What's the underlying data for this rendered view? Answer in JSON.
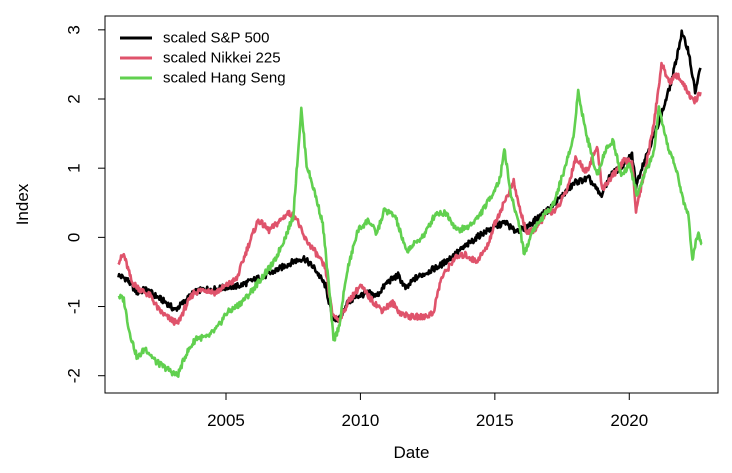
{
  "chart_data": {
    "type": "line",
    "title": "",
    "xlabel": "Date",
    "ylabel": "Index",
    "xlim": [
      2000.5,
      2023.3
    ],
    "ylim": [
      -2.25,
      3.2
    ],
    "xticks": [
      2005,
      2010,
      2015,
      2020
    ],
    "yticks": [
      -2,
      -1,
      0,
      1,
      2,
      3
    ],
    "grid": false,
    "legend_position": "top-left",
    "series": [
      {
        "name": "scaled S&P 500",
        "color": "#000000",
        "points": [
          [
            2001.0,
            -0.55
          ],
          [
            2001.3,
            -0.6
          ],
          [
            2001.7,
            -0.8
          ],
          [
            2002.0,
            -0.75
          ],
          [
            2002.4,
            -0.85
          ],
          [
            2002.8,
            -0.95
          ],
          [
            2003.1,
            -1.05
          ],
          [
            2003.4,
            -0.95
          ],
          [
            2003.8,
            -0.8
          ],
          [
            2004.2,
            -0.75
          ],
          [
            2004.6,
            -0.75
          ],
          [
            2005.0,
            -0.72
          ],
          [
            2005.5,
            -0.7
          ],
          [
            2006.0,
            -0.62
          ],
          [
            2006.5,
            -0.55
          ],
          [
            2007.0,
            -0.45
          ],
          [
            2007.5,
            -0.35
          ],
          [
            2007.9,
            -0.3
          ],
          [
            2008.3,
            -0.45
          ],
          [
            2008.7,
            -0.7
          ],
          [
            2008.95,
            -1.15
          ],
          [
            2009.2,
            -1.2
          ],
          [
            2009.5,
            -0.95
          ],
          [
            2009.9,
            -0.85
          ],
          [
            2010.3,
            -0.8
          ],
          [
            2010.6,
            -0.85
          ],
          [
            2011.0,
            -0.65
          ],
          [
            2011.4,
            -0.55
          ],
          [
            2011.7,
            -0.75
          ],
          [
            2012.0,
            -0.6
          ],
          [
            2012.5,
            -0.5
          ],
          [
            2013.0,
            -0.4
          ],
          [
            2013.5,
            -0.25
          ],
          [
            2014.0,
            -0.1
          ],
          [
            2014.5,
            0.05
          ],
          [
            2015.0,
            0.15
          ],
          [
            2015.4,
            0.22
          ],
          [
            2015.7,
            0.1
          ],
          [
            2016.1,
            0.12
          ],
          [
            2016.5,
            0.25
          ],
          [
            2017.0,
            0.4
          ],
          [
            2017.5,
            0.6
          ],
          [
            2018.0,
            0.8
          ],
          [
            2018.5,
            0.85
          ],
          [
            2018.95,
            0.6
          ],
          [
            2019.3,
            0.9
          ],
          [
            2019.8,
            1.05
          ],
          [
            2020.1,
            1.2
          ],
          [
            2020.25,
            0.75
          ],
          [
            2020.5,
            1.05
          ],
          [
            2020.9,
            1.45
          ],
          [
            2021.3,
            1.9
          ],
          [
            2021.6,
            2.3
          ],
          [
            2021.95,
            2.95
          ],
          [
            2022.2,
            2.7
          ],
          [
            2022.45,
            2.1
          ],
          [
            2022.65,
            2.45
          ]
        ]
      },
      {
        "name": "scaled Nikkei 225",
        "color": "#DF536B",
        "points": [
          [
            2001.0,
            -0.35
          ],
          [
            2001.2,
            -0.25
          ],
          [
            2001.5,
            -0.65
          ],
          [
            2001.8,
            -0.75
          ],
          [
            2002.2,
            -0.85
          ],
          [
            2002.5,
            -1.05
          ],
          [
            2002.8,
            -1.15
          ],
          [
            2003.2,
            -1.25
          ],
          [
            2003.5,
            -1.0
          ],
          [
            2003.8,
            -0.8
          ],
          [
            2004.2,
            -0.75
          ],
          [
            2004.6,
            -0.8
          ],
          [
            2005.0,
            -0.7
          ],
          [
            2005.4,
            -0.6
          ],
          [
            2005.8,
            -0.15
          ],
          [
            2006.2,
            0.25
          ],
          [
            2006.6,
            0.1
          ],
          [
            2006.9,
            0.2
          ],
          [
            2007.3,
            0.35
          ],
          [
            2007.6,
            0.3
          ],
          [
            2007.9,
            0.0
          ],
          [
            2008.3,
            -0.2
          ],
          [
            2008.7,
            -0.45
          ],
          [
            2008.95,
            -1.1
          ],
          [
            2009.2,
            -1.2
          ],
          [
            2009.6,
            -0.9
          ],
          [
            2010.0,
            -0.7
          ],
          [
            2010.4,
            -0.9
          ],
          [
            2010.8,
            -1.05
          ],
          [
            2011.2,
            -0.95
          ],
          [
            2011.5,
            -1.1
          ],
          [
            2011.9,
            -1.15
          ],
          [
            2012.3,
            -1.15
          ],
          [
            2012.7,
            -1.1
          ],
          [
            2013.0,
            -0.6
          ],
          [
            2013.5,
            -0.3
          ],
          [
            2013.9,
            -0.25
          ],
          [
            2014.3,
            -0.35
          ],
          [
            2014.7,
            -0.15
          ],
          [
            2015.0,
            0.2
          ],
          [
            2015.4,
            0.55
          ],
          [
            2015.7,
            0.8
          ],
          [
            2015.9,
            0.45
          ],
          [
            2016.2,
            0.05
          ],
          [
            2016.6,
            0.15
          ],
          [
            2016.9,
            0.35
          ],
          [
            2017.3,
            0.4
          ],
          [
            2017.7,
            0.7
          ],
          [
            2018.0,
            1.15
          ],
          [
            2018.4,
            0.95
          ],
          [
            2018.8,
            1.3
          ],
          [
            2019.0,
            0.7
          ],
          [
            2019.4,
            0.9
          ],
          [
            2019.8,
            1.1
          ],
          [
            2020.1,
            1.1
          ],
          [
            2020.25,
            0.4
          ],
          [
            2020.6,
            1.0
          ],
          [
            2020.9,
            1.6
          ],
          [
            2021.2,
            2.5
          ],
          [
            2021.5,
            2.25
          ],
          [
            2021.8,
            2.35
          ],
          [
            2022.1,
            2.15
          ],
          [
            2022.4,
            1.95
          ],
          [
            2022.65,
            2.1
          ]
        ]
      },
      {
        "name": "scaled Hang Seng",
        "color": "#61D04F",
        "points": [
          [
            2001.0,
            -0.85
          ],
          [
            2001.2,
            -0.9
          ],
          [
            2001.4,
            -1.35
          ],
          [
            2001.7,
            -1.75
          ],
          [
            2002.0,
            -1.6
          ],
          [
            2002.4,
            -1.8
          ],
          [
            2002.8,
            -1.9
          ],
          [
            2003.2,
            -2.0
          ],
          [
            2003.5,
            -1.7
          ],
          [
            2003.9,
            -1.45
          ],
          [
            2004.3,
            -1.45
          ],
          [
            2004.7,
            -1.3
          ],
          [
            2005.0,
            -1.1
          ],
          [
            2005.4,
            -1.0
          ],
          [
            2005.8,
            -0.85
          ],
          [
            2006.3,
            -0.6
          ],
          [
            2006.8,
            -0.35
          ],
          [
            2007.2,
            0.0
          ],
          [
            2007.5,
            0.3
          ],
          [
            2007.8,
            1.85
          ],
          [
            2008.0,
            1.05
          ],
          [
            2008.3,
            0.65
          ],
          [
            2008.6,
            0.2
          ],
          [
            2008.85,
            -0.8
          ],
          [
            2009.0,
            -1.5
          ],
          [
            2009.2,
            -1.3
          ],
          [
            2009.5,
            -0.5
          ],
          [
            2009.9,
            0.1
          ],
          [
            2010.3,
            0.25
          ],
          [
            2010.6,
            0.05
          ],
          [
            2010.9,
            0.4
          ],
          [
            2011.3,
            0.3
          ],
          [
            2011.7,
            -0.2
          ],
          [
            2012.0,
            -0.1
          ],
          [
            2012.4,
            0.05
          ],
          [
            2012.8,
            0.35
          ],
          [
            2013.2,
            0.35
          ],
          [
            2013.6,
            0.1
          ],
          [
            2014.0,
            0.15
          ],
          [
            2014.4,
            0.3
          ],
          [
            2014.8,
            0.55
          ],
          [
            2015.2,
            0.85
          ],
          [
            2015.35,
            1.3
          ],
          [
            2015.6,
            0.6
          ],
          [
            2015.9,
            0.2
          ],
          [
            2016.1,
            -0.25
          ],
          [
            2016.4,
            0.1
          ],
          [
            2016.8,
            0.3
          ],
          [
            2017.2,
            0.5
          ],
          [
            2017.6,
            1.0
          ],
          [
            2017.9,
            1.4
          ],
          [
            2018.1,
            2.1
          ],
          [
            2018.4,
            1.5
          ],
          [
            2018.8,
            0.9
          ],
          [
            2019.1,
            1.25
          ],
          [
            2019.4,
            1.4
          ],
          [
            2019.7,
            0.9
          ],
          [
            2020.0,
            1.05
          ],
          [
            2020.3,
            0.6
          ],
          [
            2020.6,
            0.95
          ],
          [
            2020.9,
            1.2
          ],
          [
            2021.1,
            1.85
          ],
          [
            2021.4,
            1.35
          ],
          [
            2021.7,
            1.05
          ],
          [
            2022.0,
            0.55
          ],
          [
            2022.2,
            0.3
          ],
          [
            2022.35,
            -0.3
          ],
          [
            2022.55,
            0.05
          ],
          [
            2022.7,
            -0.1
          ]
        ]
      }
    ]
  }
}
